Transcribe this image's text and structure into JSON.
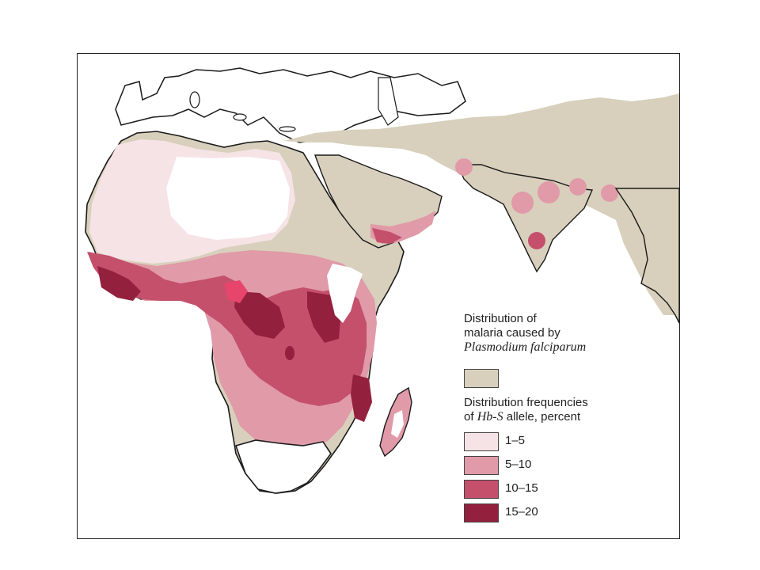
{
  "map": {
    "colors": {
      "land_outline": "#1a1a1a",
      "malaria": "#d8d0bc",
      "hbs_1_5": "#f6e3e6",
      "hbs_5_10": "#e09aa8",
      "hbs_10_15": "#c4506c",
      "hbs_15_20": "#93203d",
      "hbs_bright": "#e8456c"
    }
  },
  "legend": {
    "malaria_title_line1": "Distribution of",
    "malaria_title_line2": "malaria caused by",
    "malaria_title_line3": "Plasmodium falciparum",
    "hbs_title_line1": "Distribution frequencies",
    "hbs_title_line2_pre": "of ",
    "hbs_title_line2_italic": "Hb-S",
    "hbs_title_line2_post": " allele, percent",
    "ranges": [
      {
        "label": "1–5",
        "color": "#f6e3e6"
      },
      {
        "label": "5–10",
        "color": "#e09aa8"
      },
      {
        "label": "10–15",
        "color": "#c4506c"
      },
      {
        "label": "15–20",
        "color": "#93203d"
      }
    ]
  }
}
